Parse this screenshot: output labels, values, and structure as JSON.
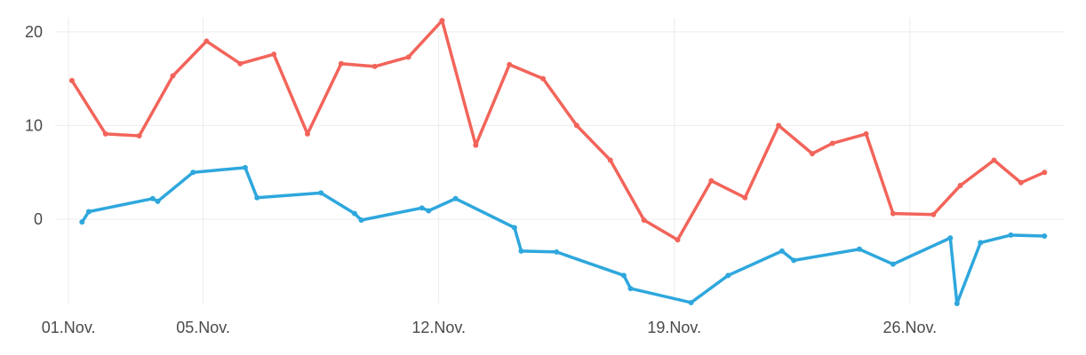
{
  "chart_data": {
    "type": "line",
    "title": "",
    "xlabel": "",
    "ylabel": "",
    "grid": true,
    "legend": "none",
    "xlim": [
      0.6,
      30.6
    ],
    "ylim": [
      -9,
      21.5
    ],
    "x_ticks": [
      {
        "day": 1,
        "label": "01.Nov."
      },
      {
        "day": 5,
        "label": "05.Nov."
      },
      {
        "day": 12,
        "label": "12.Nov."
      },
      {
        "day": 19,
        "label": "19.Nov."
      },
      {
        "day": 26,
        "label": "26.Nov."
      }
    ],
    "y_ticks": [
      0,
      10,
      20
    ],
    "series": [
      {
        "color": "#f2645a",
        "points": [
          [
            1.1,
            14.8
          ],
          [
            2.1,
            9.1
          ],
          [
            3.1,
            8.9
          ],
          [
            4.1,
            15.3
          ],
          [
            5.1,
            19.0
          ],
          [
            6.1,
            16.6
          ],
          [
            7.1,
            17.6
          ],
          [
            8.1,
            9.1
          ],
          [
            9.1,
            16.6
          ],
          [
            10.1,
            16.3
          ],
          [
            11.1,
            17.3
          ],
          [
            12.1,
            21.2
          ],
          [
            13.1,
            7.9
          ],
          [
            14.1,
            16.5
          ],
          [
            15.1,
            15.0
          ],
          [
            16.1,
            10.0
          ],
          [
            17.1,
            6.3
          ],
          [
            18.1,
            -0.1
          ],
          [
            19.1,
            -2.2
          ],
          [
            20.1,
            4.1
          ],
          [
            21.1,
            2.3
          ],
          [
            22.1,
            10.0
          ],
          [
            23.1,
            7.0
          ],
          [
            23.7,
            8.1
          ],
          [
            24.7,
            9.1
          ],
          [
            25.5,
            0.6
          ],
          [
            26.7,
            0.5
          ],
          [
            27.5,
            3.6
          ],
          [
            28.5,
            6.3
          ],
          [
            29.3,
            3.9
          ],
          [
            30.0,
            5.0
          ]
        ]
      },
      {
        "color": "#2ea7dd",
        "points": [
          [
            1.4,
            -0.3
          ],
          [
            1.6,
            0.8
          ],
          [
            3.5,
            2.2
          ],
          [
            3.65,
            1.9
          ],
          [
            4.7,
            5.0
          ],
          [
            6.25,
            5.5
          ],
          [
            6.6,
            2.3
          ],
          [
            8.5,
            2.8
          ],
          [
            9.5,
            0.6
          ],
          [
            9.7,
            -0.1
          ],
          [
            11.5,
            1.2
          ],
          [
            11.7,
            0.9
          ],
          [
            12.5,
            2.2
          ],
          [
            14.25,
            -0.9
          ],
          [
            14.45,
            -3.4
          ],
          [
            15.5,
            -3.5
          ],
          [
            17.5,
            -6.0
          ],
          [
            17.7,
            -7.4
          ],
          [
            19.5,
            -8.9
          ],
          [
            20.6,
            -6.0
          ],
          [
            22.2,
            -3.4
          ],
          [
            22.55,
            -4.4
          ],
          [
            24.5,
            -3.2
          ],
          [
            25.5,
            -4.8
          ],
          [
            27.2,
            -2.0
          ],
          [
            27.4,
            -9.0
          ],
          [
            28.1,
            -2.5
          ],
          [
            29.0,
            -1.7
          ],
          [
            30.0,
            -1.8
          ]
        ]
      }
    ]
  }
}
